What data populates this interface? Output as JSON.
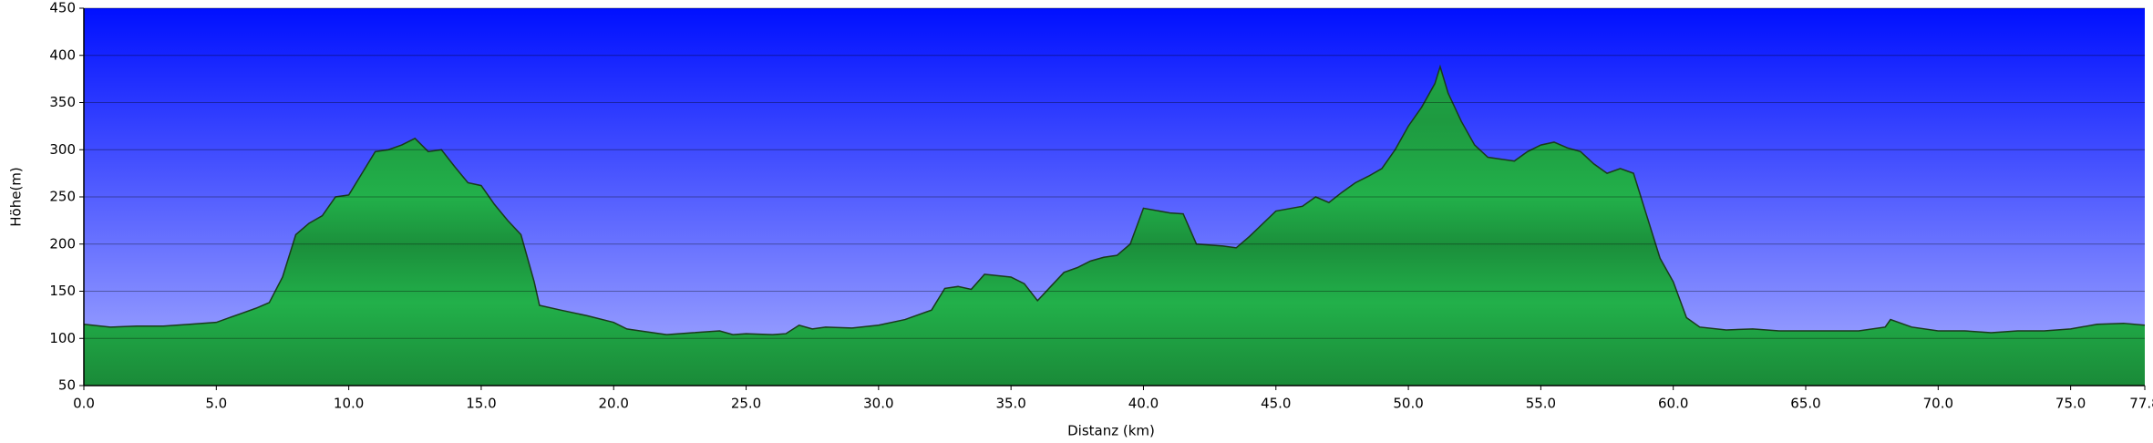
{
  "chart_data": {
    "type": "area",
    "x_label": "Distanz   (km)",
    "y_label": "Höhe(m)",
    "xlim": [
      0,
      77.8
    ],
    "ylim": [
      50,
      450
    ],
    "xticks": [
      {
        "value": 0,
        "label": "0.0"
      },
      {
        "value": 5,
        "label": "5.0"
      },
      {
        "value": 10,
        "label": "10.0"
      },
      {
        "value": 15,
        "label": "15.0"
      },
      {
        "value": 20,
        "label": "20.0"
      },
      {
        "value": 25,
        "label": "25.0"
      },
      {
        "value": 30,
        "label": "30.0"
      },
      {
        "value": 35,
        "label": "35.0"
      },
      {
        "value": 40,
        "label": "40.0"
      },
      {
        "value": 45,
        "label": "45.0"
      },
      {
        "value": 50,
        "label": "50.0"
      },
      {
        "value": 55,
        "label": "55.0"
      },
      {
        "value": 60,
        "label": "60.0"
      },
      {
        "value": 65,
        "label": "65.0"
      },
      {
        "value": 70,
        "label": "70.0"
      },
      {
        "value": 75,
        "label": "75.0"
      },
      77.8
    ],
    "yticks": [
      50,
      100,
      150,
      200,
      250,
      300,
      350,
      400,
      450
    ],
    "grid": true,
    "color": "#22b04a",
    "x": [
      0,
      1,
      2,
      3,
      4,
      5,
      5.5,
      6,
      6.5,
      7,
      7.5,
      8,
      8.5,
      9,
      9.5,
      10,
      10.5,
      11,
      11.5,
      12,
      12.5,
      13,
      13.5,
      14,
      14.5,
      15,
      15.5,
      16,
      16.5,
      17,
      17.2,
      18,
      19,
      20,
      20.5,
      21,
      22,
      23,
      24,
      24.5,
      25,
      26,
      26.5,
      27,
      27.5,
      28,
      29,
      30,
      31,
      32,
      32.5,
      33,
      33.5,
      34,
      35,
      35.5,
      36,
      36.5,
      37,
      37.5,
      38,
      38.5,
      39,
      39.5,
      40,
      41,
      41.5,
      42,
      43,
      43.5,
      44,
      45,
      46,
      46.5,
      47,
      47.5,
      48,
      48.5,
      49,
      49.5,
      50,
      50.5,
      51,
      51.2,
      51.5,
      52,
      52.5,
      53,
      53.5,
      54,
      54.5,
      55,
      55.5,
      56,
      56.5,
      57,
      57.5,
      58,
      58.5,
      59,
      59.5,
      60,
      60.5,
      61,
      62,
      63,
      64,
      65,
      66,
      67,
      68,
      68.2,
      69,
      70,
      71,
      72,
      73,
      74,
      75,
      76,
      77,
      77.8
    ],
    "values": [
      115,
      112,
      113,
      113,
      115,
      117,
      122,
      127,
      132,
      138,
      165,
      210,
      222,
      230,
      250,
      252,
      275,
      298,
      300,
      305,
      312,
      298,
      300,
      282,
      265,
      262,
      242,
      225,
      210,
      160,
      135,
      130,
      124,
      117,
      110,
      108,
      104,
      106,
      108,
      104,
      105,
      104,
      105,
      114,
      110,
      112,
      111,
      114,
      120,
      130,
      153,
      155,
      152,
      168,
      165,
      158,
      140,
      155,
      170,
      175,
      182,
      186,
      188,
      200,
      238,
      233,
      232,
      200,
      198,
      196,
      208,
      235,
      240,
      250,
      244,
      255,
      265,
      272,
      280,
      300,
      325,
      345,
      370,
      388,
      360,
      330,
      305,
      292,
      290,
      288,
      298,
      305,
      308,
      302,
      298,
      285,
      275,
      280,
      275,
      230,
      185,
      160,
      122,
      112,
      109,
      110,
      108,
      108,
      108,
      108,
      112,
      120,
      112,
      108,
      108,
      106,
      108,
      108,
      110,
      115,
      116,
      114
    ]
  }
}
